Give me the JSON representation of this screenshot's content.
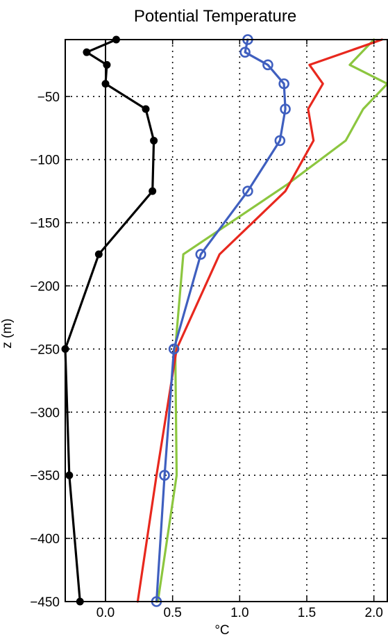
{
  "chart_data": {
    "type": "line",
    "title": "Potential Temperature",
    "xlabel": "°C",
    "ylabel": "z (m)",
    "xlim": [
      -0.3,
      2.1
    ],
    "ylim": [
      -450,
      -5
    ],
    "xticks": [
      0.0,
      0.5,
      1.0,
      1.5,
      2.0
    ],
    "xtick_labels": [
      "0.0",
      "0.5",
      "1.0",
      "1.5",
      "2.0"
    ],
    "yticks": [
      -50,
      -100,
      -150,
      -200,
      -250,
      -300,
      -350,
      -400,
      -450
    ],
    "ytick_labels": [
      "−50",
      "−100",
      "−150",
      "−200",
      "−250",
      "−300",
      "−350",
      "−400",
      "−450"
    ],
    "grid": true,
    "vertical_reference_line_x": 0,
    "series": [
      {
        "color": "#000000",
        "marker": "filled-circle",
        "x": [
          0.08,
          -0.14,
          0.01,
          0.0,
          0.3,
          0.36,
          0.35,
          -0.05,
          -0.3,
          -0.27,
          -0.19
        ],
        "y": [
          -5,
          -15,
          -25,
          -40,
          -60,
          -85,
          -125,
          -175,
          -250,
          -350,
          -450
        ]
      },
      {
        "color": "#3f5fbf",
        "marker": "open-circle",
        "x": [
          1.06,
          1.04,
          1.21,
          1.33,
          1.34,
          1.3,
          1.06,
          0.71,
          0.51,
          0.44,
          0.38
        ],
        "y": [
          -5,
          -15,
          -25,
          -40,
          -60,
          -85,
          -125,
          -175,
          -250,
          -350,
          -450
        ]
      },
      {
        "color": "#e8281e",
        "marker": "none",
        "x": [
          2.06,
          1.52,
          1.62,
          1.51,
          1.55,
          1.34,
          0.85,
          0.53,
          0.38,
          0.24
        ],
        "y": [
          -5,
          -25,
          -40,
          -60,
          -85,
          -125,
          -175,
          -250,
          -350,
          -450
        ]
      },
      {
        "color": "#8cc63f",
        "marker": "none",
        "x": [
          2.0,
          1.82,
          2.1,
          1.92,
          1.79,
          1.35,
          0.58,
          0.52,
          0.53,
          0.39
        ],
        "y": [
          -5,
          -25,
          -40,
          -60,
          -85,
          -120,
          -175,
          -250,
          -350,
          -450
        ]
      }
    ]
  }
}
